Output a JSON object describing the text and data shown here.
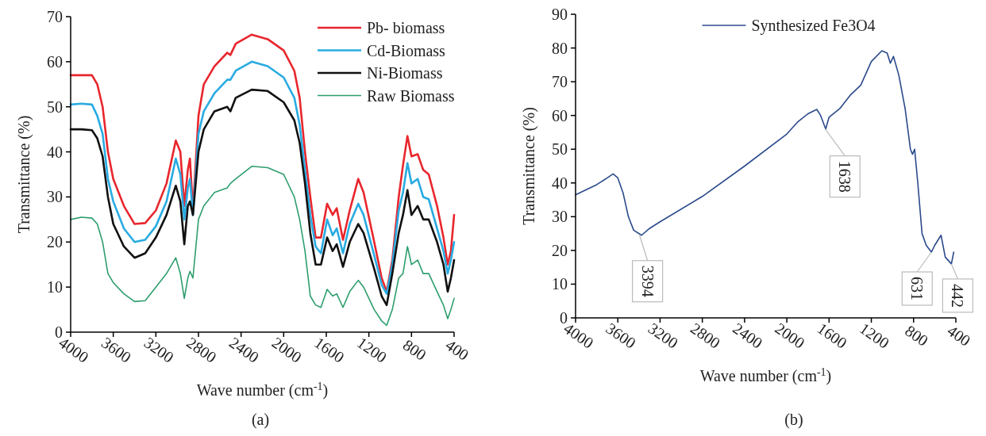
{
  "chart_data": [
    {
      "type": "line",
      "title": "(a)",
      "xlabel": "Wave number (cm$^{-1}$)",
      "ylabel": "Transmittance (%)",
      "xlim": [
        4000,
        400
      ],
      "ylim": [
        0,
        70
      ],
      "xticks": [
        4000,
        3600,
        3200,
        2800,
        2400,
        2000,
        1600,
        1200,
        800,
        400
      ],
      "yticks": [
        0,
        10,
        20,
        30,
        40,
        50,
        60,
        70
      ],
      "grid": false,
      "legend": "top right",
      "marker": "none",
      "line_style": "solid",
      "x": [
        4000,
        3900,
        3800,
        3750,
        3700,
        3650,
        3600,
        3500,
        3400,
        3300,
        3200,
        3100,
        3013,
        2970,
        2933,
        2900,
        2880,
        2852,
        2800,
        2750,
        2650,
        2530,
        2500,
        2450,
        2300,
        2150,
        2000,
        1900,
        1850,
        1800,
        1750,
        1700,
        1650,
        1592,
        1540,
        1502,
        1443,
        1380,
        1300,
        1250,
        1150,
        1080,
        1033,
        980,
        920,
        880,
        838,
        800,
        742,
        690,
        638,
        560,
        500,
        460,
        430,
        400
      ],
      "series": [
        {
          "name": "Pb- biomass",
          "color": "#e8262d",
          "values": [
            57,
            57,
            57,
            55,
            50,
            40,
            34,
            28,
            24,
            24.2,
            27,
            33,
            42.5,
            40,
            28,
            36,
            38.5,
            27,
            48,
            55,
            59,
            62,
            61.5,
            64,
            66,
            65,
            62.5,
            58,
            52,
            40,
            30,
            21,
            21,
            28.5,
            26,
            27.5,
            20.5,
            27,
            34,
            31,
            20,
            12,
            9,
            16,
            30,
            37,
            43.5,
            39,
            39.5,
            36,
            35,
            28,
            21,
            15,
            18,
            26
          ]
        },
        {
          "name": "Cd-Biomass",
          "color": "#29abe2",
          "values": [
            50.5,
            50.7,
            50.5,
            48,
            44,
            34,
            29,
            23,
            20,
            20.5,
            23.5,
            29,
            38.5,
            35,
            25,
            32,
            34,
            26,
            44,
            49,
            53,
            56,
            56,
            58,
            60,
            59,
            56.5,
            52,
            46,
            36,
            26,
            19,
            17.5,
            25,
            21.5,
            23,
            17.5,
            24,
            28.5,
            26,
            17,
            10.5,
            8.5,
            15,
            27,
            31,
            37.5,
            33,
            34,
            30,
            29.5,
            23,
            18,
            13,
            16,
            20
          ]
        },
        {
          "name": "Ni-Biomass",
          "color": "#111111",
          "values": [
            45,
            45,
            44.8,
            43,
            39,
            30,
            24,
            19,
            16.5,
            17.5,
            21,
            26,
            32.5,
            29,
            19.5,
            28,
            29,
            26,
            40,
            45,
            49,
            50,
            49,
            52,
            53.8,
            53.5,
            51,
            47,
            42,
            33,
            22,
            15,
            15,
            21,
            18,
            19.5,
            14.5,
            20,
            24,
            22,
            14,
            8,
            6,
            13,
            22,
            26,
            31.5,
            26,
            28,
            25,
            25,
            20,
            15,
            9,
            12,
            16
          ]
        },
        {
          "name": "Raw Biomass",
          "color": "#2e9e6e",
          "values": [
            25,
            25.5,
            25.3,
            24,
            20,
            13,
            11,
            8.5,
            6.8,
            7,
            10,
            13,
            16.5,
            13,
            7.5,
            12,
            13.5,
            12,
            25,
            28,
            31,
            32,
            33,
            34,
            36.8,
            36.5,
            35,
            30,
            25,
            18,
            8,
            6,
            5.5,
            9.5,
            8,
            8.5,
            5.5,
            9,
            11.5,
            10,
            5,
            2.5,
            1.5,
            5,
            12,
            13,
            19,
            15,
            16,
            13,
            13,
            9,
            6,
            3,
            5,
            7.5
          ]
        }
      ]
    },
    {
      "type": "line",
      "title": "(b)",
      "xlabel": "Wave number (cm$^{-1}$)",
      "ylabel": "Transmittance (%)",
      "xlim": [
        4000,
        400
      ],
      "ylim": [
        0,
        90
      ],
      "xticks": [
        4000,
        3600,
        3200,
        2800,
        2400,
        2000,
        1600,
        1200,
        800,
        400
      ],
      "yticks": [
        0,
        10,
        20,
        30,
        40,
        50,
        60,
        70,
        80,
        90
      ],
      "grid": false,
      "legend": "top",
      "marker": "none",
      "line_style": "solid",
      "x": [
        4000,
        3800,
        3700,
        3645,
        3600,
        3550,
        3500,
        3450,
        3375,
        3300,
        3200,
        2800,
        2400,
        2000,
        1900,
        1800,
        1716,
        1680,
        1632,
        1600,
        1500,
        1400,
        1300,
        1200,
        1100,
        1050,
        1020,
        990,
        940,
        880,
        830,
        810,
        790,
        760,
        720,
        680,
        631,
        600,
        540,
        500,
        442,
        420
      ],
      "series": [
        {
          "name": "Synthesized Fe3O4",
          "color": "#2b4a8b",
          "values": [
            36.5,
            39.5,
            41.5,
            42.7,
            41.5,
            37,
            30,
            26,
            24.5,
            26.5,
            28.5,
            36,
            45,
            54.5,
            58,
            60.5,
            61.8,
            60,
            56,
            59.5,
            62,
            66,
            69,
            76,
            79.2,
            78.5,
            75.5,
            77.5,
            72,
            62,
            50,
            48.5,
            50,
            40,
            25,
            21.5,
            19.5,
            21.5,
            24.5,
            18,
            16,
            19.5
          ]
        }
      ],
      "annotations": [
        {
          "text": "3394",
          "x": 3394,
          "y": 24.5
        },
        {
          "text": "1638",
          "x": 1638,
          "y": 56
        },
        {
          "text": "631",
          "x": 631,
          "y": 19.5
        },
        {
          "text": "442",
          "x": 442,
          "y": 16
        }
      ]
    }
  ]
}
